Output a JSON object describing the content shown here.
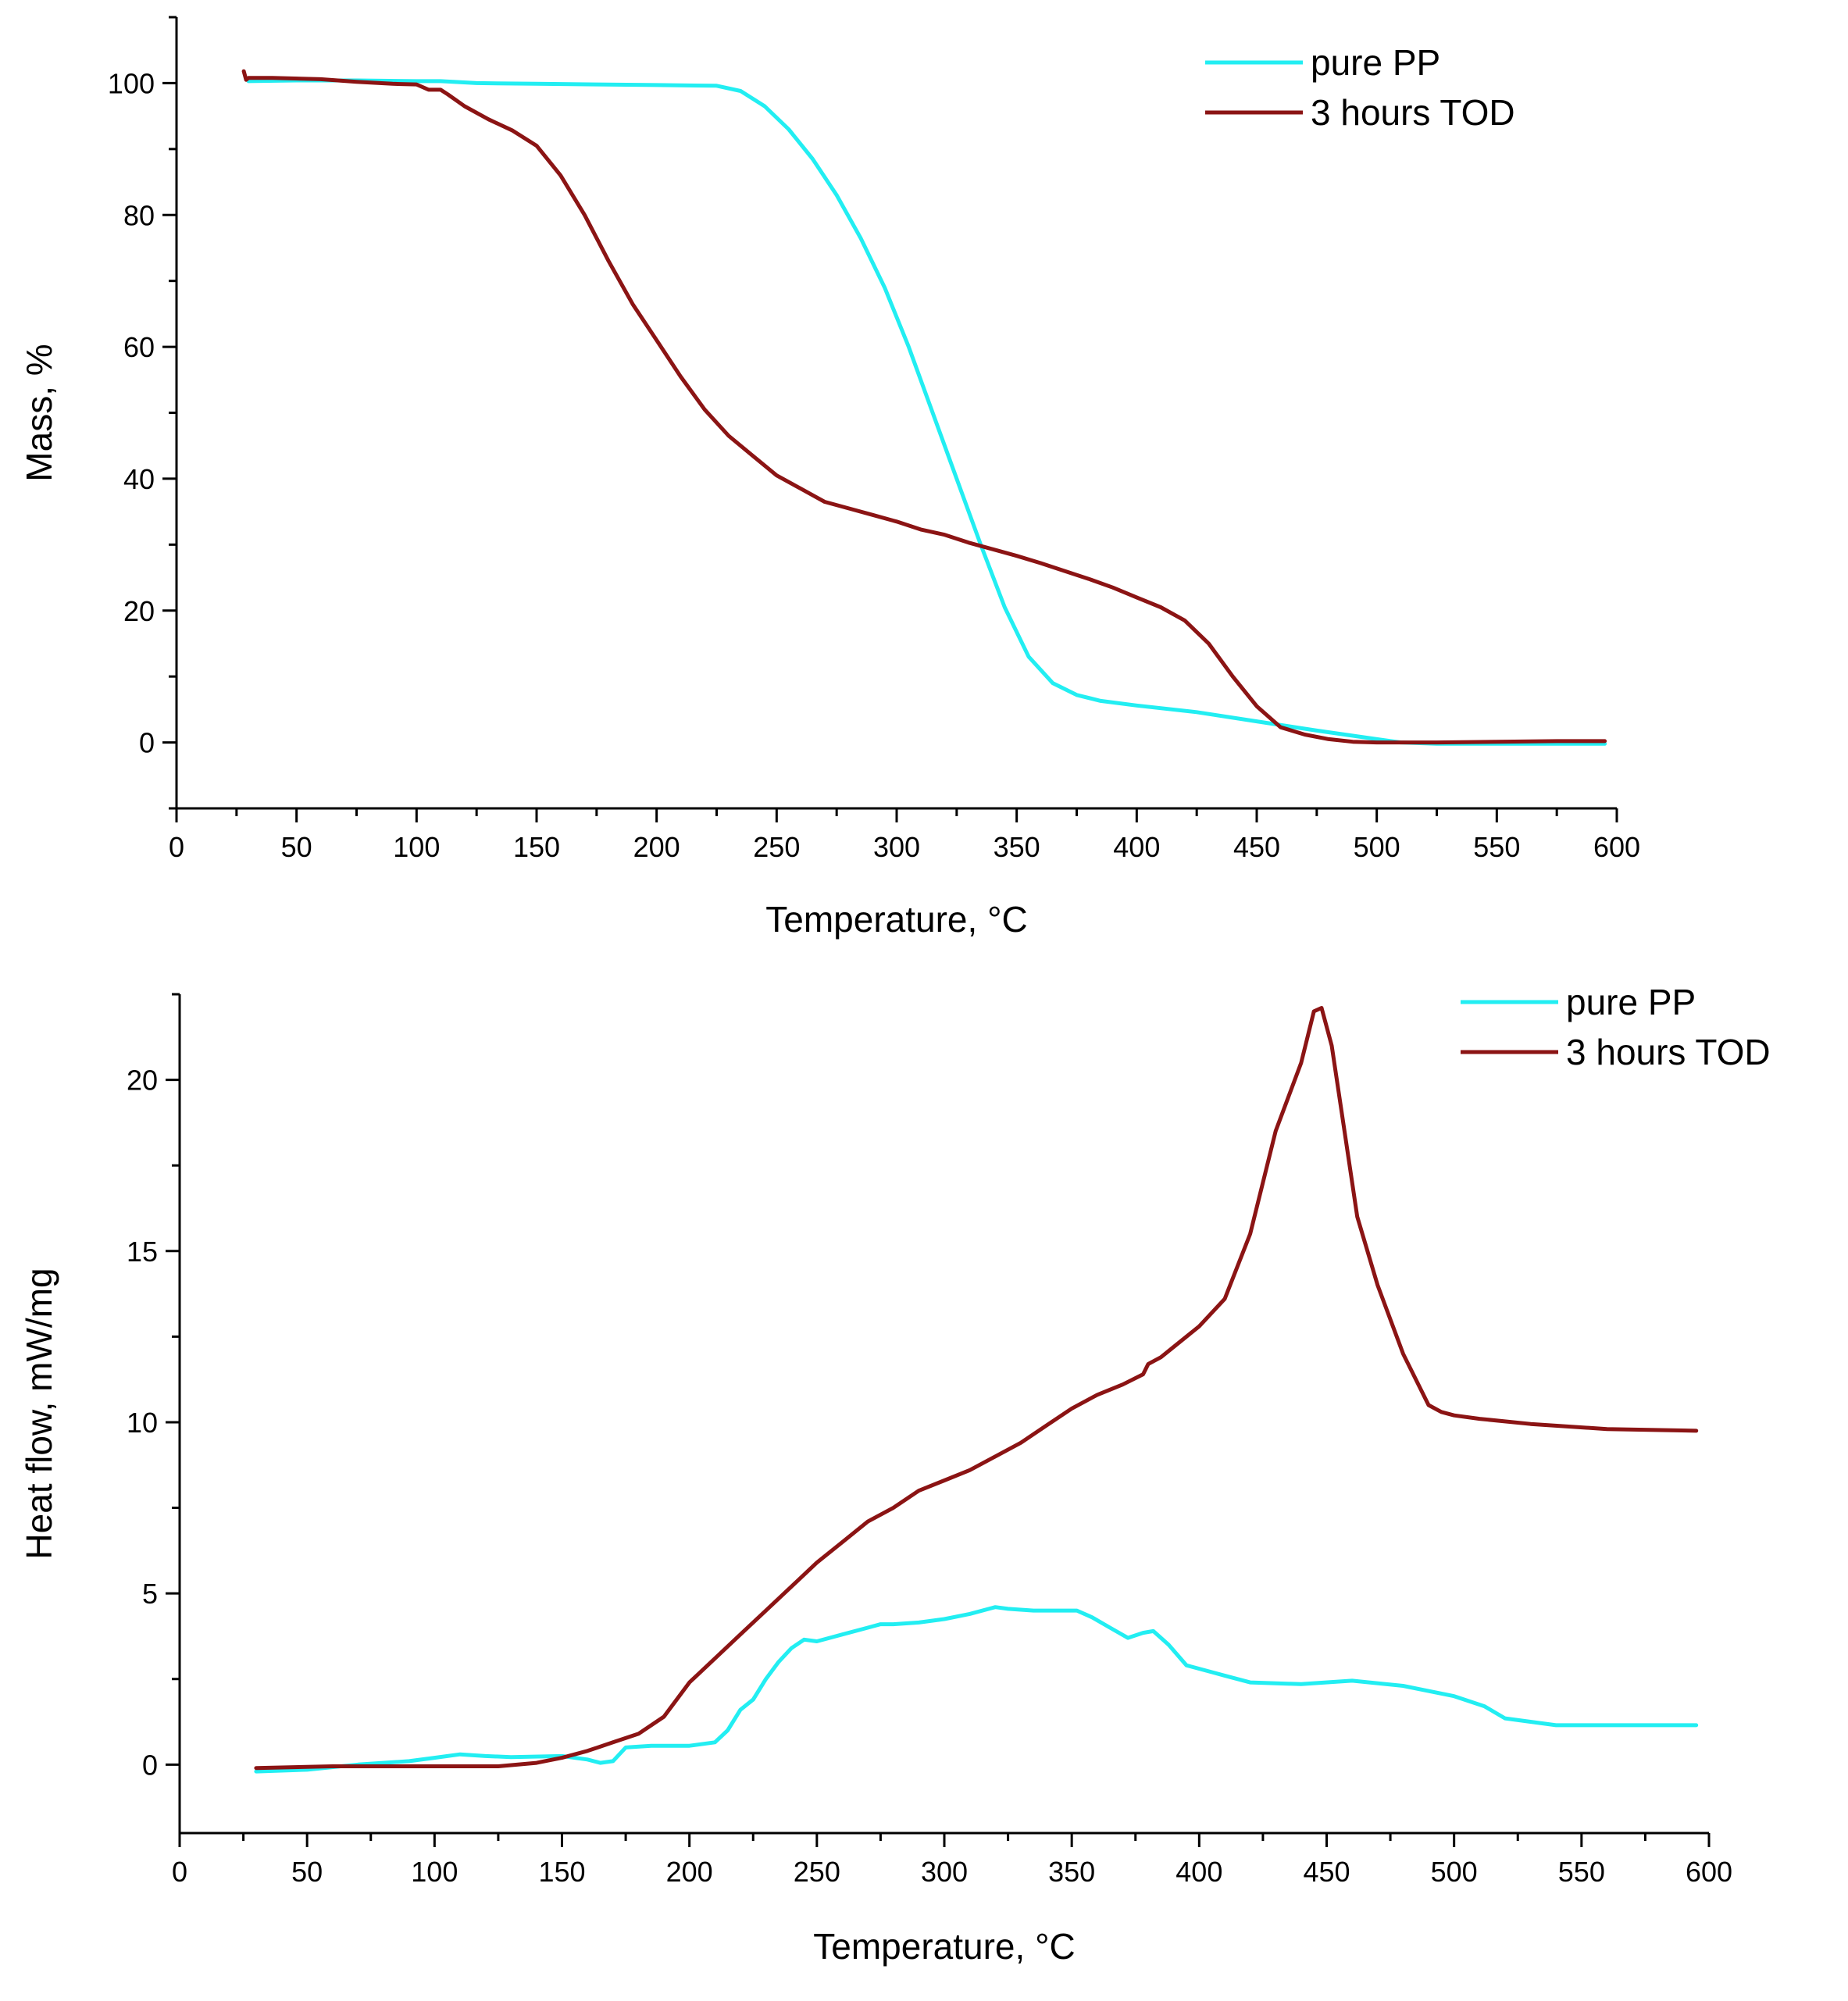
{
  "chart_data": [
    {
      "type": "line",
      "xlabel": "Temperature, °C",
      "ylabel": "Mass, %",
      "xlim": [
        0,
        600
      ],
      "ylim": [
        -10,
        110
      ],
      "xticks": [
        0,
        50,
        100,
        150,
        200,
        250,
        300,
        350,
        400,
        450,
        500,
        550,
        600
      ],
      "yticks": [
        0,
        20,
        40,
        60,
        80,
        100
      ],
      "legend_position": "top-right",
      "series": [
        {
          "name": "pure PP",
          "color": "#22eef2",
          "x": [
            30,
            50,
            75,
            100,
            110,
            125,
            150,
            175,
            200,
            225,
            235,
            245,
            255,
            265,
            275,
            285,
            295,
            305,
            315,
            325,
            335,
            345,
            355,
            365,
            375,
            385,
            400,
            425,
            450,
            475,
            500,
            510,
            525,
            550,
            575,
            595
          ],
          "y": [
            100.3,
            100.4,
            100.4,
            100.3,
            100.3,
            100.0,
            99.9,
            99.8,
            99.7,
            99.6,
            98.8,
            96.5,
            93.0,
            88.5,
            83.0,
            76.5,
            69.0,
            60.0,
            50.0,
            40.0,
            30.0,
            20.5,
            13.0,
            9.0,
            7.2,
            6.3,
            5.6,
            4.6,
            3.2,
            1.8,
            0.5,
            0.0,
            -0.2,
            -0.2,
            -0.2,
            -0.2
          ]
        },
        {
          "name": "3 hours TOD",
          "color": "#8b1414",
          "x": [
            28,
            29,
            30,
            40,
            60,
            75,
            90,
            100,
            105,
            110,
            113,
            120,
            130,
            140,
            150,
            160,
            170,
            180,
            190,
            200,
            210,
            220,
            230,
            240,
            250,
            260,
            270,
            280,
            290,
            300,
            310,
            320,
            330,
            340,
            350,
            360,
            370,
            380,
            390,
            400,
            410,
            420,
            430,
            440,
            450,
            460,
            470,
            480,
            490,
            500,
            510,
            525,
            550,
            575,
            595
          ],
          "y": [
            101.8,
            100.5,
            100.8,
            100.8,
            100.6,
            100.2,
            99.9,
            99.8,
            99.0,
            99.0,
            98.3,
            96.5,
            94.5,
            92.8,
            90.5,
            86.0,
            80.0,
            73.0,
            66.5,
            61.0,
            55.5,
            50.5,
            46.5,
            43.5,
            40.5,
            38.5,
            36.5,
            35.5,
            34.5,
            33.5,
            32.3,
            31.5,
            30.3,
            29.3,
            28.3,
            27.2,
            26.0,
            24.8,
            23.5,
            22.0,
            20.5,
            18.5,
            15.0,
            10.0,
            5.5,
            2.3,
            1.2,
            0.5,
            0.1,
            0.0,
            0.0,
            0.0,
            0.1,
            0.2,
            0.2
          ]
        }
      ]
    },
    {
      "type": "line",
      "xlabel": "Temperature, °C",
      "ylabel": "Heat flow, mW/mg",
      "xlim": [
        0,
        600
      ],
      "ylim": [
        -2,
        22.5
      ],
      "xticks": [
        0,
        50,
        100,
        150,
        200,
        250,
        300,
        350,
        400,
        450,
        500,
        550,
        600
      ],
      "yticks": [
        0,
        5,
        10,
        15,
        20
      ],
      "legend_position": "top-right",
      "series": [
        {
          "name": "pure PP",
          "color": "#22eef2",
          "x": [
            30,
            50,
            70,
            90,
            100,
            110,
            120,
            130,
            150,
            160,
            165,
            170,
            175,
            185,
            200,
            210,
            215,
            220,
            225,
            230,
            235,
            240,
            245,
            250,
            260,
            270,
            275,
            280,
            290,
            300,
            310,
            320,
            325,
            335,
            345,
            352,
            358,
            365,
            372,
            378,
            382,
            388,
            395,
            405,
            410,
            420,
            440,
            460,
            480,
            500,
            512,
            520,
            540,
            560,
            595
          ],
          "y": [
            -0.2,
            -0.15,
            0.0,
            0.1,
            0.2,
            0.3,
            0.25,
            0.22,
            0.25,
            0.15,
            0.05,
            0.1,
            0.5,
            0.55,
            0.55,
            0.65,
            1.0,
            1.6,
            1.9,
            2.5,
            3.0,
            3.4,
            3.65,
            3.6,
            3.8,
            4.0,
            4.1,
            4.1,
            4.15,
            4.25,
            4.4,
            4.6,
            4.55,
            4.5,
            4.5,
            4.5,
            4.3,
            4.0,
            3.7,
            3.85,
            3.9,
            3.5,
            2.9,
            2.7,
            2.6,
            2.4,
            2.35,
            2.45,
            2.3,
            2.0,
            1.7,
            1.35,
            1.15,
            1.15,
            1.15
          ]
        },
        {
          "name": "3 hours TOD",
          "color": "#8b1414",
          "x": [
            30,
            60,
            100,
            125,
            140,
            150,
            160,
            170,
            180,
            190,
            195,
            200,
            210,
            220,
            230,
            240,
            250,
            260,
            270,
            280,
            290,
            300,
            310,
            320,
            330,
            340,
            350,
            360,
            370,
            378,
            380,
            385,
            390,
            400,
            410,
            420,
            430,
            440,
            445,
            448,
            452,
            456,
            462,
            470,
            480,
            490,
            495,
            500,
            510,
            530,
            560,
            595
          ],
          "y": [
            -0.1,
            -0.05,
            -0.05,
            -0.05,
            0.05,
            0.2,
            0.4,
            0.65,
            0.9,
            1.4,
            1.9,
            2.4,
            3.1,
            3.8,
            4.5,
            5.2,
            5.9,
            6.5,
            7.1,
            7.5,
            8.0,
            8.3,
            8.6,
            9.0,
            9.4,
            9.9,
            10.4,
            10.8,
            11.1,
            11.4,
            11.7,
            11.9,
            12.2,
            12.8,
            13.6,
            15.5,
            18.5,
            20.5,
            22.0,
            22.1,
            21.0,
            19.0,
            16.0,
            14.0,
            12.0,
            10.5,
            10.3,
            10.2,
            10.1,
            9.95,
            9.8,
            9.75
          ]
        }
      ]
    }
  ]
}
